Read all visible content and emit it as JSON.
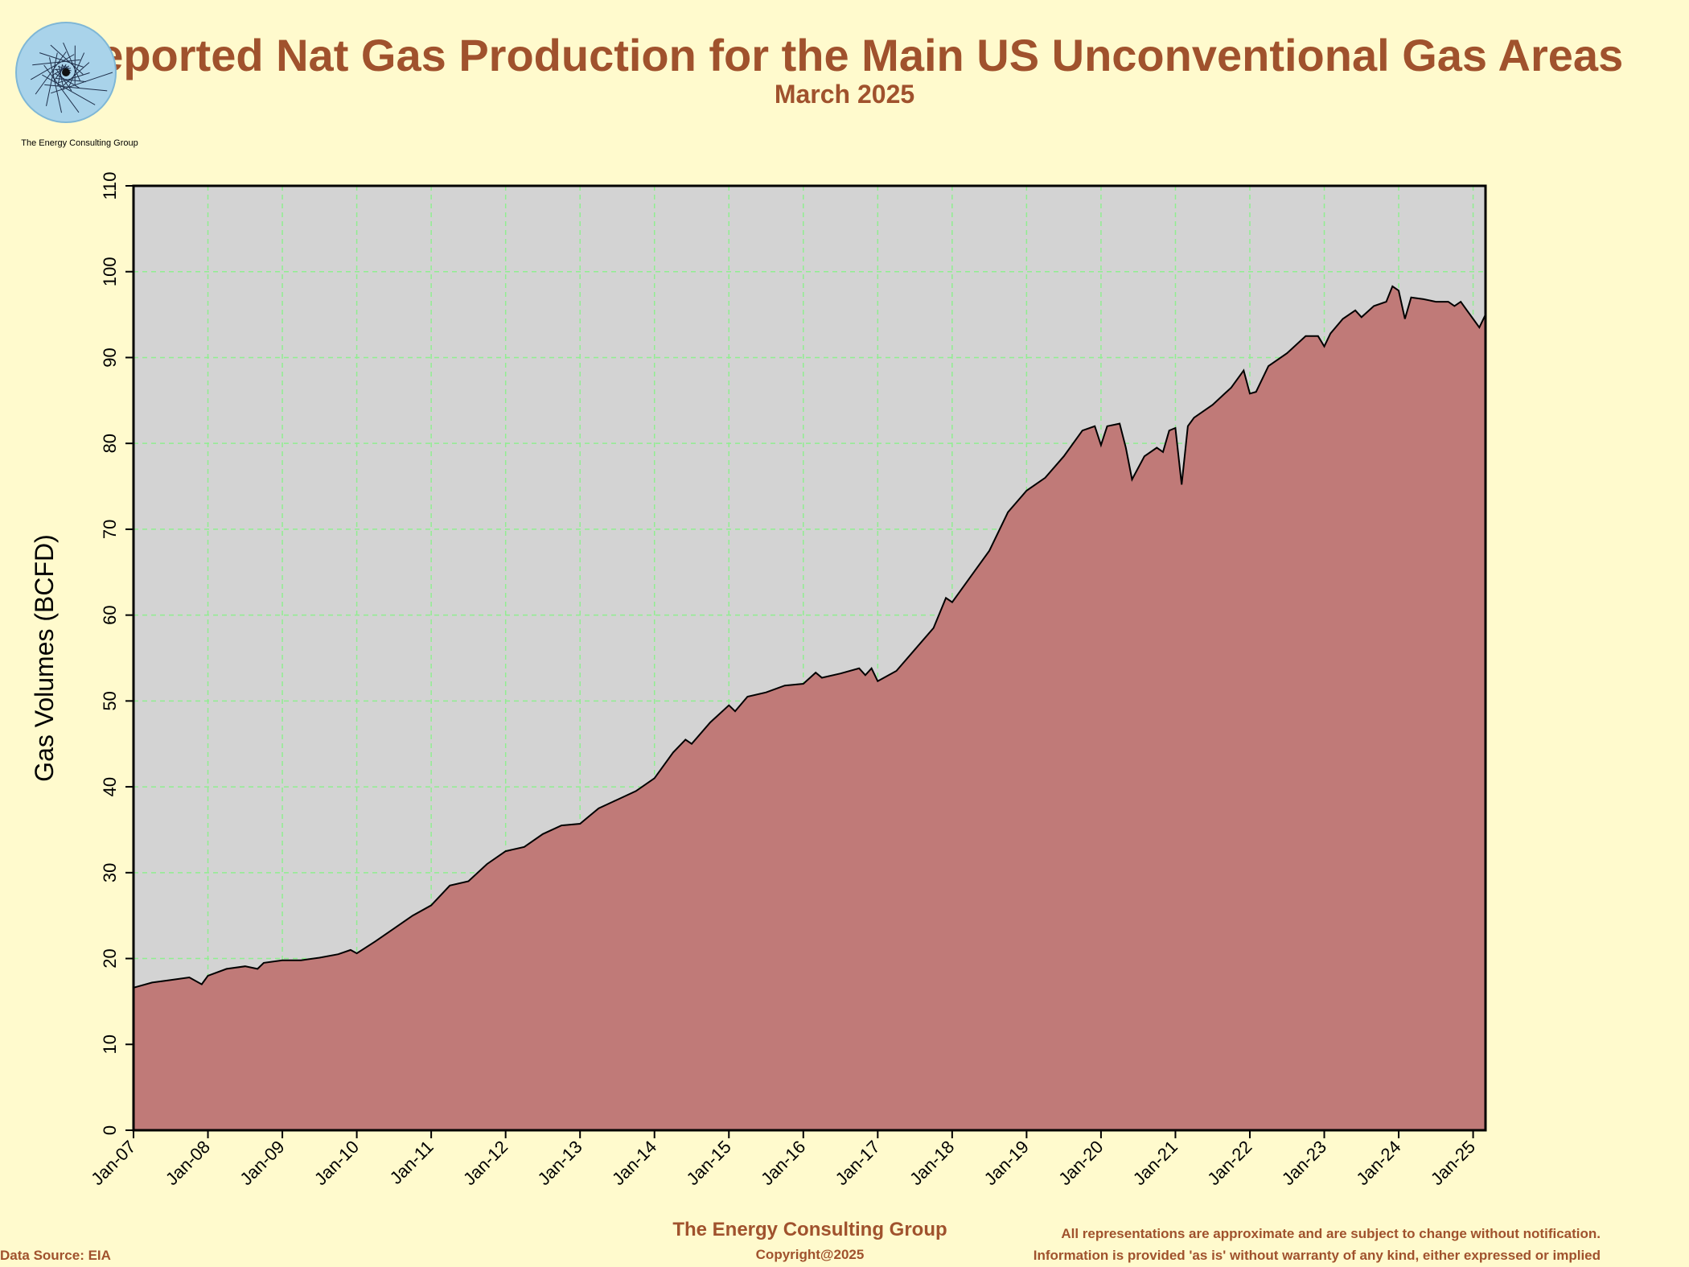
{
  "header": {
    "title": "Reported Nat Gas Production for the Main US Unconventional Gas Areas",
    "subtitle": "March 2025"
  },
  "logo": {
    "caption": "The Energy Consulting Group",
    "icon": "spiral-logo-icon"
  },
  "colors": {
    "background": "#fffacd",
    "plot_background": "#d3d3d3",
    "area_fill": "#c07a78",
    "line": "#000000",
    "grid": "#90ee90",
    "title": "#a0522d"
  },
  "footer": {
    "company": "The Energy Consulting Group",
    "copyright": "Copyright@2025",
    "data_source": "Data Source: EIA",
    "disclaimer_1": "All representations are approximate and are subject to change without notification.",
    "disclaimer_2": "Information is provided 'as is' without warranty of any kind, either expressed or implied"
  },
  "chart_data": {
    "type": "area",
    "ylabel": "Gas Volumes (BCFD)",
    "xlabel": "",
    "ylim": [
      0,
      110
    ],
    "xlim": [
      "Jan-07",
      "Mar-25"
    ],
    "y_ticks": [
      0,
      10,
      20,
      30,
      40,
      50,
      60,
      70,
      80,
      90,
      100,
      110
    ],
    "x_ticks": [
      "Jan-07",
      "Jan-08",
      "Jan-09",
      "Jan-10",
      "Jan-11",
      "Jan-12",
      "Jan-13",
      "Jan-14",
      "Jan-15",
      "Jan-16",
      "Jan-17",
      "Jan-18",
      "Jan-19",
      "Jan-20",
      "Jan-21",
      "Jan-22",
      "Jan-23",
      "Jan-24",
      "Jan-25"
    ],
    "grid": true,
    "series": [
      {
        "points": [
          [
            "Jan-07",
            16.6
          ],
          [
            "Apr-07",
            17.2
          ],
          [
            "Jul-07",
            17.5
          ],
          [
            "Oct-07",
            17.8
          ],
          [
            "Dec-07",
            17.0
          ],
          [
            "Jan-08",
            18.0
          ],
          [
            "Apr-08",
            18.8
          ],
          [
            "Jul-08",
            19.1
          ],
          [
            "Sep-08",
            18.8
          ],
          [
            "Oct-08",
            19.5
          ],
          [
            "Jan-09",
            19.8
          ],
          [
            "Apr-09",
            19.8
          ],
          [
            "Jul-09",
            20.1
          ],
          [
            "Oct-09",
            20.5
          ],
          [
            "Dec-09",
            21.0
          ],
          [
            "Jan-10",
            20.6
          ],
          [
            "Apr-10",
            22.0
          ],
          [
            "Jul-10",
            23.5
          ],
          [
            "Oct-10",
            25.0
          ],
          [
            "Jan-11",
            26.2
          ],
          [
            "Apr-11",
            28.5
          ],
          [
            "Jul-11",
            29.0
          ],
          [
            "Oct-11",
            31.0
          ],
          [
            "Jan-12",
            32.5
          ],
          [
            "Apr-12",
            33.0
          ],
          [
            "Jul-12",
            34.5
          ],
          [
            "Oct-12",
            35.5
          ],
          [
            "Jan-13",
            35.7
          ],
          [
            "Apr-13",
            37.5
          ],
          [
            "Jul-13",
            38.5
          ],
          [
            "Oct-13",
            39.5
          ],
          [
            "Jan-14",
            41.0
          ],
          [
            "Apr-14",
            44.0
          ],
          [
            "Jun-14",
            45.5
          ],
          [
            "Jul-14",
            45.0
          ],
          [
            "Oct-14",
            47.5
          ],
          [
            "Jan-15",
            49.5
          ],
          [
            "Feb-15",
            48.8
          ],
          [
            "Apr-15",
            50.5
          ],
          [
            "Jul-15",
            51.0
          ],
          [
            "Oct-15",
            51.8
          ],
          [
            "Jan-16",
            52.0
          ],
          [
            "Mar-16",
            53.3
          ],
          [
            "Apr-16",
            52.7
          ],
          [
            "Jul-16",
            53.2
          ],
          [
            "Oct-16",
            53.8
          ],
          [
            "Nov-16",
            53.0
          ],
          [
            "Dec-16",
            53.8
          ],
          [
            "Jan-17",
            52.3
          ],
          [
            "Apr-17",
            53.5
          ],
          [
            "Jul-17",
            56.0
          ],
          [
            "Oct-17",
            58.5
          ],
          [
            "Dec-17",
            62.0
          ],
          [
            "Jan-18",
            61.5
          ],
          [
            "Apr-18",
            64.5
          ],
          [
            "Jul-18",
            67.5
          ],
          [
            "Oct-18",
            72.0
          ],
          [
            "Jan-19",
            74.5
          ],
          [
            "Apr-19",
            76.0
          ],
          [
            "Jul-19",
            78.5
          ],
          [
            "Oct-19",
            81.5
          ],
          [
            "Dec-19",
            82.0
          ],
          [
            "Jan-20",
            79.8
          ],
          [
            "Feb-20",
            82.0
          ],
          [
            "Apr-20",
            82.3
          ],
          [
            "May-20",
            79.5
          ],
          [
            "Jun-20",
            75.8
          ],
          [
            "Aug-20",
            78.5
          ],
          [
            "Oct-20",
            79.5
          ],
          [
            "Nov-20",
            79.0
          ],
          [
            "Dec-20",
            81.5
          ],
          [
            "Jan-21",
            81.8
          ],
          [
            "Feb-21",
            75.2
          ],
          [
            "Mar-21",
            82.0
          ],
          [
            "Apr-21",
            83.0
          ],
          [
            "Jul-21",
            84.5
          ],
          [
            "Oct-21",
            86.5
          ],
          [
            "Dec-21",
            88.5
          ],
          [
            "Jan-22",
            85.8
          ],
          [
            "Feb-22",
            86.0
          ],
          [
            "Apr-22",
            89.0
          ],
          [
            "Jul-22",
            90.5
          ],
          [
            "Oct-22",
            92.5
          ],
          [
            "Dec-22",
            92.5
          ],
          [
            "Jan-23",
            91.3
          ],
          [
            "Feb-23",
            92.8
          ],
          [
            "Apr-23",
            94.5
          ],
          [
            "Jun-23",
            95.5
          ],
          [
            "Jul-23",
            94.7
          ],
          [
            "Sep-23",
            96.0
          ],
          [
            "Nov-23",
            96.5
          ],
          [
            "Dec-23",
            98.3
          ],
          [
            "Jan-24",
            97.8
          ],
          [
            "Feb-24",
            94.5
          ],
          [
            "Mar-24",
            97.0
          ],
          [
            "May-24",
            96.8
          ],
          [
            "Jul-24",
            96.5
          ],
          [
            "Sep-24",
            96.5
          ],
          [
            "Oct-24",
            96.0
          ],
          [
            "Nov-24",
            96.5
          ],
          [
            "Dec-24",
            95.5
          ],
          [
            "Jan-25",
            94.5
          ],
          [
            "Feb-25",
            93.5
          ],
          [
            "Mar-25",
            95.0
          ]
        ]
      }
    ]
  }
}
